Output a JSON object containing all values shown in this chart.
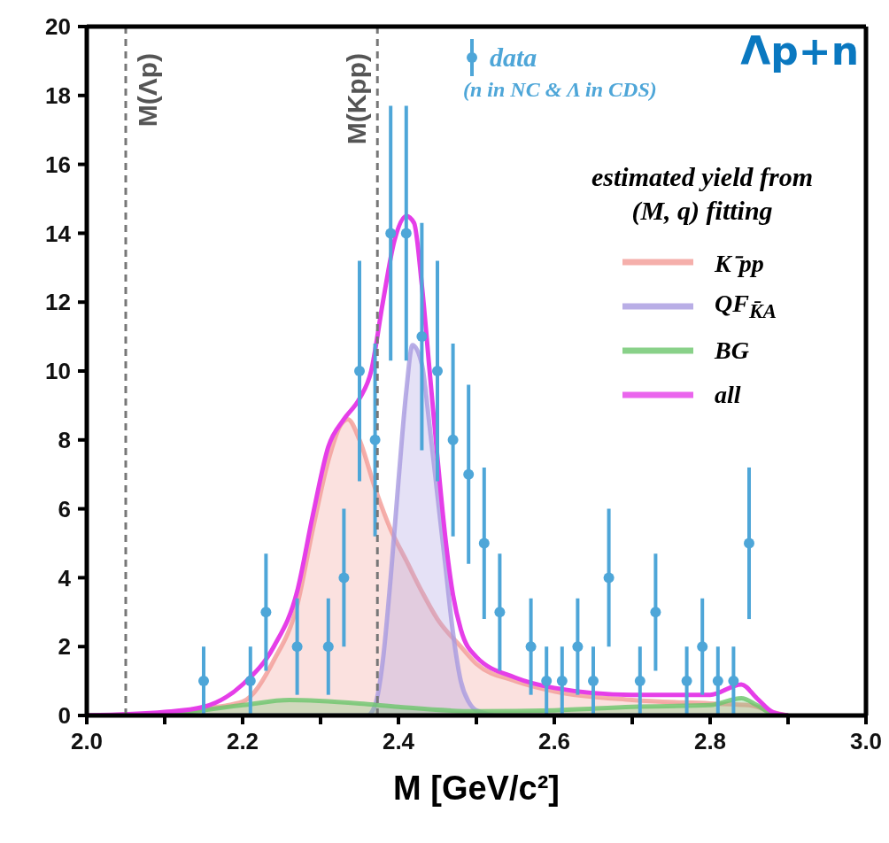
{
  "chart_data": {
    "type": "line",
    "xlabel": "M [GeV/c²]",
    "legend_title": "estimated yield from (M, q) fitting",
    "annotations": [
      "Λp+n",
      "(n in NC & Λ in CDS)"
    ],
    "xlim": [
      2.0,
      3.0
    ],
    "xticks": [
      {
        "value": 2.0,
        "label": "2.0"
      },
      {
        "value": 2.1,
        "label": null
      },
      {
        "value": 2.2,
        "label": "2.2"
      },
      {
        "value": 2.3,
        "label": null
      },
      {
        "value": 2.4,
        "label": "2.4"
      },
      {
        "value": 2.5,
        "label": null
      },
      {
        "value": 2.6,
        "label": "2.6"
      },
      {
        "value": 2.7,
        "label": null
      },
      {
        "value": 2.8,
        "label": "2.8"
      },
      {
        "value": 2.9,
        "label": null
      },
      {
        "value": 3.0,
        "label": "3.0"
      }
    ],
    "ylim": [
      0,
      20
    ],
    "yticks": [
      0,
      2,
      4,
      6,
      8,
      10,
      12,
      14,
      16,
      18,
      20
    ],
    "grid": false,
    "legend": "top right",
    "ref_lines": [
      {
        "axis": "x",
        "value": 2.05,
        "label": "M(Λp)",
        "color": "#777777",
        "line_style": "dashed"
      },
      {
        "axis": "x",
        "value": 2.373,
        "label": "M(Kpp)",
        "color": "#777777",
        "line_style": "dashed"
      }
    ],
    "series": [
      {
        "name": "K⁻pp",
        "type": "area",
        "color": "#f29b96",
        "x": [
          2.0,
          2.1,
          2.15,
          2.2,
          2.24,
          2.27,
          2.29,
          2.31,
          2.325,
          2.335,
          2.35,
          2.37,
          2.39,
          2.41,
          2.43,
          2.45,
          2.48,
          2.5,
          2.55,
          2.6,
          2.7,
          2.8,
          2.85,
          2.88,
          2.9
        ],
        "values": [
          0,
          0.05,
          0.2,
          0.4,
          1.6,
          3.2,
          5.4,
          7.4,
          8.4,
          8.6,
          8.0,
          6.6,
          5.4,
          4.5,
          3.6,
          2.8,
          2.0,
          1.5,
          1.0,
          0.7,
          0.45,
          0.35,
          0.3,
          0.1,
          0
        ]
      },
      {
        "name": "QF$_{K̄A}$",
        "type": "area",
        "color": "#a89ae0",
        "x": [
          2.0,
          2.36,
          2.37,
          2.38,
          2.39,
          2.4,
          2.41,
          2.418,
          2.43,
          2.44,
          2.45,
          2.46,
          2.47,
          2.48,
          2.49,
          2.5,
          2.53,
          2.9
        ],
        "values": [
          0,
          0,
          0.3,
          1.6,
          4.0,
          6.8,
          9.4,
          10.75,
          10.2,
          8.4,
          6.4,
          4.4,
          2.4,
          1.0,
          0.4,
          0.15,
          0,
          0
        ]
      },
      {
        "name": "BG",
        "type": "area",
        "color": "#6cc56c",
        "x": [
          2.0,
          2.1,
          2.2,
          2.26,
          2.35,
          2.4,
          2.5,
          2.6,
          2.7,
          2.8,
          2.84,
          2.86,
          2.88,
          2.9
        ],
        "values": [
          0,
          0.05,
          0.3,
          0.45,
          0.35,
          0.25,
          0.12,
          0.15,
          0.25,
          0.3,
          0.5,
          0.3,
          0.05,
          0
        ]
      },
      {
        "name": "all",
        "color": "#e53ee8",
        "x": [
          2.0,
          2.1,
          2.15,
          2.2,
          2.24,
          2.27,
          2.29,
          2.31,
          2.33,
          2.35,
          2.365,
          2.38,
          2.395,
          2.41,
          2.42,
          2.43,
          2.44,
          2.45,
          2.46,
          2.47,
          2.48,
          2.5,
          2.55,
          2.6,
          2.7,
          2.8,
          2.84,
          2.86,
          2.88,
          2.9
        ],
        "values": [
          0,
          0.1,
          0.25,
          0.9,
          2.0,
          3.6,
          5.8,
          7.8,
          8.6,
          9.2,
          10.0,
          12.0,
          13.8,
          14.5,
          14.3,
          12.5,
          10.0,
          7.5,
          5.2,
          3.5,
          2.5,
          1.7,
          1.1,
          0.8,
          0.6,
          0.6,
          0.9,
          0.5,
          0.1,
          0
        ]
      },
      {
        "name": "data",
        "type": "scatter",
        "color": "#4ea6d8",
        "marker": "circle",
        "x": [
          2.15,
          2.21,
          2.23,
          2.27,
          2.31,
          2.33,
          2.35,
          2.37,
          2.39,
          2.41,
          2.43,
          2.45,
          2.47,
          2.49,
          2.51,
          2.53,
          2.57,
          2.59,
          2.61,
          2.63,
          2.65,
          2.67,
          2.71,
          2.73,
          2.77,
          2.79,
          2.81,
          2.83,
          2.85
        ],
        "values": [
          1,
          1,
          3,
          2,
          2,
          4,
          10,
          8,
          14,
          14,
          11,
          10,
          8,
          7,
          5,
          3,
          2,
          1,
          1,
          2,
          1,
          4,
          1,
          3,
          1,
          2,
          1,
          1,
          5
        ],
        "errors": [
          1,
          1,
          1.7,
          1.4,
          1.4,
          2,
          3.2,
          2.8,
          3.7,
          3.7,
          3.3,
          3.2,
          2.8,
          2.6,
          2.2,
          1.7,
          1.4,
          1,
          1,
          1.4,
          1,
          2,
          1,
          1.7,
          1,
          1.4,
          1,
          1,
          2.2
        ]
      }
    ]
  }
}
